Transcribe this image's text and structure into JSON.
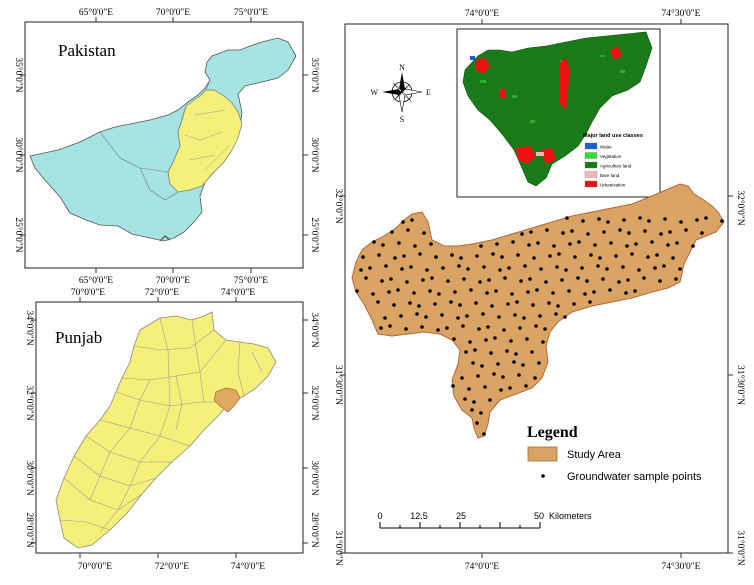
{
  "pakistan_panel": {
    "title": "Pakistan",
    "top_ticks": [
      "65°0'0\"E",
      "70°0'0\"E",
      "75°0'0\"E"
    ],
    "bottom_ticks": [
      "65°0'0\"E",
      "70°0'0\"E",
      "75°0'0\"E"
    ],
    "left_ticks": [
      "35°0'0\"N",
      "30°0'0\"N",
      "25°0'0\"N"
    ],
    "right_ticks": [
      "35°0'0\"N",
      "30°0'0\"N",
      "25°0'0\"N"
    ],
    "colors": {
      "country": "#a6e3e3",
      "punjab": "#f5f07a"
    }
  },
  "punjab_panel": {
    "title": "Punjab",
    "top_ticks": [
      "70°0'0\"E",
      "72°0'0\"E",
      "74°0'0\"E"
    ],
    "bottom_ticks": [
      "70°0'0\"E",
      "72°0'0\"E",
      "74°0'0\"E"
    ],
    "left_ticks": [
      "34°0'0\"N",
      "32°0'0\"N",
      "30°0'0\"N",
      "28°0'0\"N"
    ],
    "right_ticks": [
      "34°0'0\"N",
      "32°0'0\"N",
      "30°0'0\"N",
      "28°0'0\"N"
    ],
    "colors": {
      "province": "#f5f07a",
      "study": "#e0a860"
    }
  },
  "main_panel": {
    "top_ticks": [
      "74°0'0\"E",
      "74°30'0\"E"
    ],
    "bottom_ticks": [
      "74°0'0\"E",
      "74°30'0\"E"
    ],
    "left_ticks": [
      "32°0'0\"N",
      "31°30'0\"N",
      "31°0'0\"N"
    ],
    "right_ticks": [
      "32°0'0\"N",
      "31°30'0\"N",
      "31°0'0\"N"
    ],
    "compass": {
      "n": "N",
      "s": "S",
      "e": "E",
      "w": "W"
    },
    "inset": {
      "title": "Major land use classes",
      "classes": [
        {
          "label": "Water",
          "color": "#1f5fd6"
        },
        {
          "label": "Vegetation",
          "color": "#33dd33"
        },
        {
          "label": "Agriculture land",
          "color": "#1a7a1a"
        },
        {
          "label": "Bare land",
          "color": "#f2b7b7"
        },
        {
          "label": "Urbanization",
          "color": "#ee1111"
        }
      ]
    },
    "legend": {
      "title": "Legend",
      "items": [
        {
          "label": "Study Area",
          "color": "#d9a463"
        },
        {
          "label": "Groundwater sample points",
          "color": "#000000"
        }
      ]
    },
    "scalebar": {
      "ticks": [
        "0",
        "12.5",
        "25",
        "50"
      ],
      "unit": "Kilometers"
    },
    "study_area_color": "#d9a463"
  }
}
